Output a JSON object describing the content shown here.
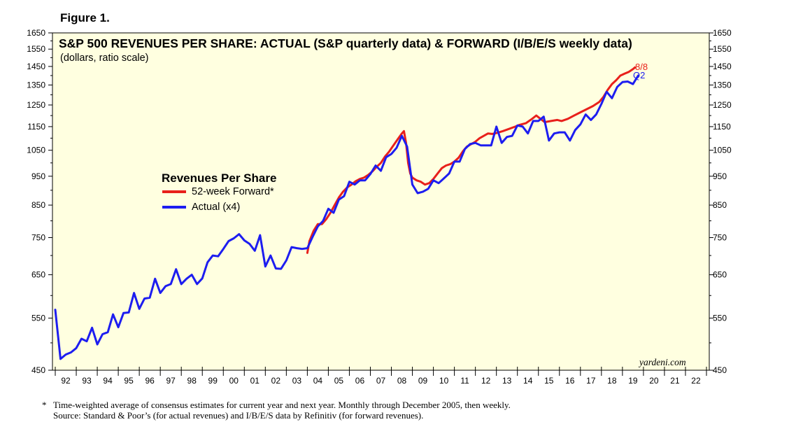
{
  "figure_label": "Figure 1.",
  "watermark": "yardeni.com",
  "footnote": {
    "marker": "*",
    "line1": "Time-weighted average of consensus estimates for current year and next year. Monthly through December 2005, then weekly.",
    "line2": "Source: Standard & Poor’s (for actual revenues) and I/B/E/S data by Refinitiv (for forward revenues)."
  },
  "colors": {
    "plot_bg": "#FFFFE0",
    "forward": "#E8201B",
    "actual": "#1D1DF0"
  },
  "chart_data": {
    "type": "line",
    "title": "S&P 500 REVENUES PER SHARE: ACTUAL (S&P quarterly data) & FORWARD (I/B/E/S weekly data)",
    "subtitle": "(dollars, ratio scale)",
    "log_scale": true,
    "ylim": [
      450,
      1650
    ],
    "yticks": [
      450,
      550,
      650,
      750,
      850,
      950,
      1050,
      1150,
      1250,
      1350,
      1450,
      1550,
      1650
    ],
    "ytick_labels": [
      "450",
      "550",
      "650",
      "750",
      "850",
      "950",
      "1050",
      "1150",
      "1250",
      "1350",
      "1450",
      "1550",
      "1650"
    ],
    "xlim": [
      1992,
      2023
    ],
    "xtick_labels": [
      "92",
      "93",
      "94",
      "95",
      "96",
      "97",
      "98",
      "99",
      "00",
      "01",
      "02",
      "03",
      "04",
      "05",
      "06",
      "07",
      "08",
      "09",
      "10",
      "11",
      "12",
      "13",
      "14",
      "15",
      "16",
      "17",
      "18",
      "19",
      "20",
      "21",
      "22"
    ],
    "grid": false,
    "legend": {
      "title": "Revenues Per Share",
      "placement": "center-left"
    },
    "series": [
      {
        "name": "52-week Forward*",
        "color": "#E8201B",
        "end_label": "8/8",
        "points": [
          [
            2004.0,
            707
          ],
          [
            2004.1,
            740
          ],
          [
            2004.3,
            770
          ],
          [
            2004.5,
            790
          ],
          [
            2004.7,
            790
          ],
          [
            2004.9,
            805
          ],
          [
            2005.1,
            825
          ],
          [
            2005.3,
            850
          ],
          [
            2005.5,
            875
          ],
          [
            2005.7,
            895
          ],
          [
            2005.9,
            910
          ],
          [
            2006.1,
            920
          ],
          [
            2006.3,
            932
          ],
          [
            2006.5,
            940
          ],
          [
            2006.7,
            945
          ],
          [
            2006.9,
            955
          ],
          [
            2007.1,
            968
          ],
          [
            2007.3,
            985
          ],
          [
            2007.5,
            1000
          ],
          [
            2007.7,
            1025
          ],
          [
            2007.9,
            1045
          ],
          [
            2008.1,
            1070
          ],
          [
            2008.3,
            1095
          ],
          [
            2008.5,
            1120
          ],
          [
            2008.6,
            1130
          ],
          [
            2008.7,
            1080
          ],
          [
            2008.8,
            1000
          ],
          [
            2008.9,
            960
          ],
          [
            2009.0,
            945
          ],
          [
            2009.2,
            935
          ],
          [
            2009.4,
            930
          ],
          [
            2009.6,
            920
          ],
          [
            2009.8,
            925
          ],
          [
            2010.0,
            940
          ],
          [
            2010.2,
            960
          ],
          [
            2010.4,
            980
          ],
          [
            2010.6,
            990
          ],
          [
            2010.8,
            995
          ],
          [
            2011.0,
            1005
          ],
          [
            2011.2,
            1020
          ],
          [
            2011.4,
            1045
          ],
          [
            2011.6,
            1065
          ],
          [
            2011.8,
            1075
          ],
          [
            2012.0,
            1085
          ],
          [
            2012.2,
            1100
          ],
          [
            2012.4,
            1110
          ],
          [
            2012.6,
            1120
          ],
          [
            2012.8,
            1118
          ],
          [
            2013.0,
            1122
          ],
          [
            2013.3,
            1130
          ],
          [
            2013.6,
            1140
          ],
          [
            2013.9,
            1150
          ],
          [
            2014.1,
            1158
          ],
          [
            2014.4,
            1165
          ],
          [
            2014.7,
            1185
          ],
          [
            2014.9,
            1200
          ],
          [
            2015.1,
            1185
          ],
          [
            2015.3,
            1170
          ],
          [
            2015.6,
            1175
          ],
          [
            2015.9,
            1180
          ],
          [
            2016.1,
            1175
          ],
          [
            2016.4,
            1185
          ],
          [
            2016.7,
            1200
          ],
          [
            2017.0,
            1215
          ],
          [
            2017.3,
            1230
          ],
          [
            2017.6,
            1245
          ],
          [
            2017.9,
            1265
          ],
          [
            2018.1,
            1290
          ],
          [
            2018.3,
            1325
          ],
          [
            2018.5,
            1355
          ],
          [
            2018.7,
            1375
          ],
          [
            2018.9,
            1400
          ],
          [
            2019.1,
            1410
          ],
          [
            2019.3,
            1420
          ],
          [
            2019.5,
            1435
          ],
          [
            2019.6,
            1445
          ]
        ]
      },
      {
        "name": "Actual (x4)",
        "color": "#1D1DF0",
        "end_label": "Q2",
        "points": [
          [
            1992.0,
            568
          ],
          [
            1992.25,
            470
          ],
          [
            1992.5,
            478
          ],
          [
            1992.75,
            482
          ],
          [
            1993.0,
            490
          ],
          [
            1993.25,
            508
          ],
          [
            1993.5,
            503
          ],
          [
            1993.75,
            530
          ],
          [
            1994.0,
            497
          ],
          [
            1994.25,
            517
          ],
          [
            1994.5,
            521
          ],
          [
            1994.75,
            558
          ],
          [
            1995.0,
            531
          ],
          [
            1995.25,
            561
          ],
          [
            1995.5,
            562
          ],
          [
            1995.75,
            606
          ],
          [
            1996.0,
            570
          ],
          [
            1996.25,
            593
          ],
          [
            1996.5,
            595
          ],
          [
            1996.75,
            640
          ],
          [
            1997.0,
            606
          ],
          [
            1997.25,
            622
          ],
          [
            1997.5,
            627
          ],
          [
            1997.75,
            664
          ],
          [
            1998.0,
            627
          ],
          [
            1998.25,
            640
          ],
          [
            1998.5,
            650
          ],
          [
            1998.75,
            627
          ],
          [
            1999.0,
            641
          ],
          [
            1999.25,
            682
          ],
          [
            1999.5,
            700
          ],
          [
            1999.75,
            698
          ],
          [
            2000.0,
            718
          ],
          [
            2000.25,
            740
          ],
          [
            2000.5,
            748
          ],
          [
            2000.75,
            760
          ],
          [
            2001.0,
            742
          ],
          [
            2001.25,
            732
          ],
          [
            2001.5,
            713
          ],
          [
            2001.75,
            757
          ],
          [
            2002.0,
            671
          ],
          [
            2002.25,
            700
          ],
          [
            2002.5,
            666
          ],
          [
            2002.75,
            665
          ],
          [
            2003.0,
            687
          ],
          [
            2003.25,
            723
          ],
          [
            2003.5,
            720
          ],
          [
            2003.75,
            718
          ],
          [
            2004.0,
            720
          ],
          [
            2004.25,
            752
          ],
          [
            2004.5,
            783
          ],
          [
            2004.75,
            800
          ],
          [
            2005.0,
            838
          ],
          [
            2005.25,
            825
          ],
          [
            2005.5,
            868
          ],
          [
            2005.75,
            880
          ],
          [
            2006.0,
            930
          ],
          [
            2006.25,
            920
          ],
          [
            2006.5,
            935
          ],
          [
            2006.75,
            935
          ],
          [
            2007.0,
            958
          ],
          [
            2007.25,
            990
          ],
          [
            2007.5,
            970
          ],
          [
            2007.75,
            1022
          ],
          [
            2008.0,
            1035
          ],
          [
            2008.25,
            1060
          ],
          [
            2008.5,
            1110
          ],
          [
            2008.75,
            1065
          ],
          [
            2009.0,
            920
          ],
          [
            2009.25,
            890
          ],
          [
            2009.5,
            895
          ],
          [
            2009.75,
            905
          ],
          [
            2010.0,
            935
          ],
          [
            2010.25,
            925
          ],
          [
            2010.5,
            942
          ],
          [
            2010.75,
            960
          ],
          [
            2011.0,
            1005
          ],
          [
            2011.25,
            1005
          ],
          [
            2011.5,
            1055
          ],
          [
            2011.75,
            1075
          ],
          [
            2012.0,
            1080
          ],
          [
            2012.25,
            1070
          ],
          [
            2012.5,
            1070
          ],
          [
            2012.75,
            1070
          ],
          [
            2013.0,
            1150
          ],
          [
            2013.25,
            1080
          ],
          [
            2013.5,
            1105
          ],
          [
            2013.75,
            1110
          ],
          [
            2014.0,
            1155
          ],
          [
            2014.25,
            1150
          ],
          [
            2014.5,
            1120
          ],
          [
            2014.75,
            1175
          ],
          [
            2015.0,
            1175
          ],
          [
            2015.25,
            1195
          ],
          [
            2015.5,
            1090
          ],
          [
            2015.75,
            1120
          ],
          [
            2016.0,
            1125
          ],
          [
            2016.25,
            1125
          ],
          [
            2016.5,
            1090
          ],
          [
            2016.75,
            1135
          ],
          [
            2017.0,
            1160
          ],
          [
            2017.25,
            1205
          ],
          [
            2017.5,
            1180
          ],
          [
            2017.75,
            1205
          ],
          [
            2018.0,
            1255
          ],
          [
            2018.25,
            1315
          ],
          [
            2018.5,
            1283
          ],
          [
            2018.75,
            1340
          ],
          [
            2019.0,
            1365
          ],
          [
            2019.25,
            1368
          ],
          [
            2019.5,
            1355
          ],
          [
            2019.75,
            1400
          ]
        ]
      }
    ]
  }
}
